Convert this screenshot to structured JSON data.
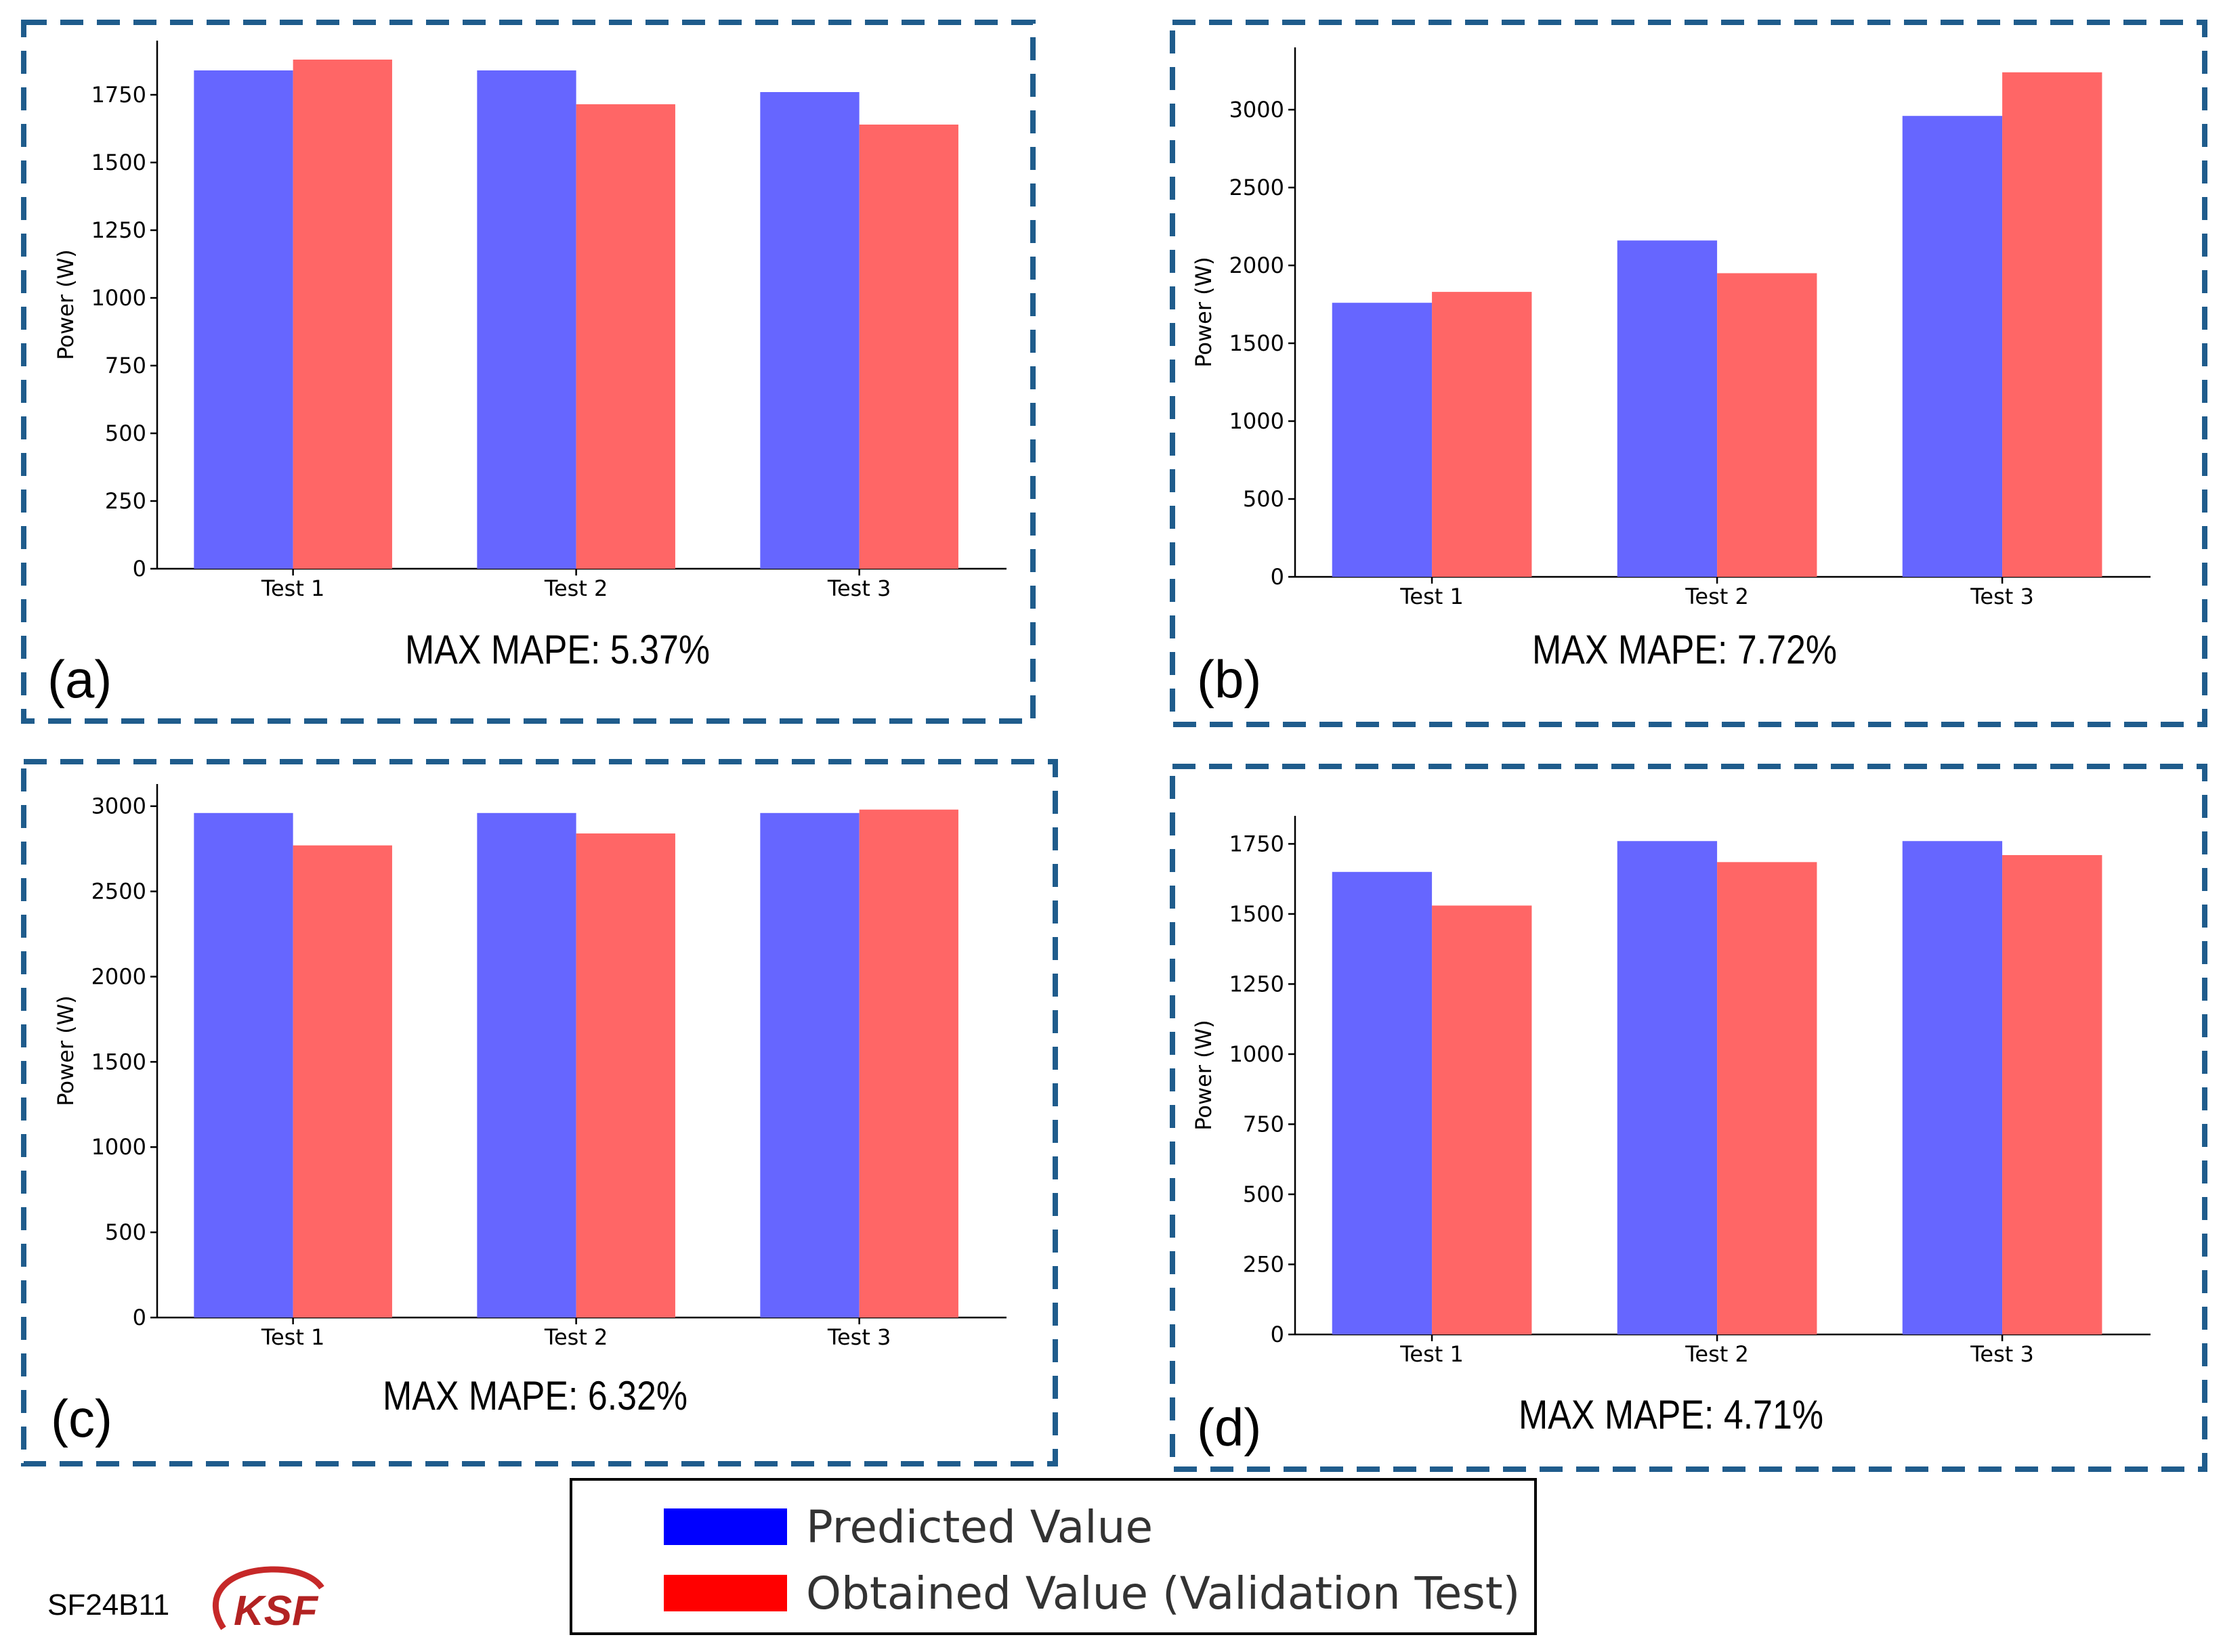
{
  "chart_data": [
    {
      "panel": "(a)",
      "type": "bar",
      "categories": [
        "Test 1",
        "Test 2",
        "Test 3"
      ],
      "ylabel": "Power (W)",
      "ylim": [
        0,
        1950
      ],
      "yticks": [
        0,
        250,
        500,
        750,
        1000,
        1250,
        1500,
        1750
      ],
      "series": [
        {
          "name": "Predicted Value",
          "color": "#6666ff",
          "values": [
            1840,
            1840,
            1760
          ]
        },
        {
          "name": "Obtained Value (Validation Test)",
          "color": "#ff6666",
          "values": [
            1880,
            1715,
            1640
          ]
        }
      ],
      "annotation": "MAX MAPE: 5.37%"
    },
    {
      "panel": "(b)",
      "type": "bar",
      "categories": [
        "Test 1",
        "Test 2",
        "Test 3"
      ],
      "ylabel": "Power (W)",
      "ylim": [
        0,
        3400
      ],
      "yticks": [
        0,
        500,
        1000,
        1500,
        2000,
        2500,
        3000
      ],
      "series": [
        {
          "name": "Predicted Value",
          "color": "#6666ff",
          "values": [
            1760,
            2160,
            2960
          ]
        },
        {
          "name": "Obtained Value (Validation Test)",
          "color": "#ff6666",
          "values": [
            1830,
            1950,
            3240
          ]
        }
      ],
      "annotation": "MAX MAPE: 7.72%"
    },
    {
      "panel": "(c)",
      "type": "bar",
      "categories": [
        "Test 1",
        "Test 2",
        "Test 3"
      ],
      "ylabel": "Power (W)",
      "ylim": [
        0,
        3130
      ],
      "yticks": [
        0,
        500,
        1000,
        1500,
        2000,
        2500,
        3000
      ],
      "series": [
        {
          "name": "Predicted Value",
          "color": "#6666ff",
          "values": [
            2960,
            2960,
            2960
          ]
        },
        {
          "name": "Obtained Value (Validation Test)",
          "color": "#ff6666",
          "values": [
            2770,
            2840,
            2980
          ]
        }
      ],
      "annotation": "MAX MAPE: 6.32%"
    },
    {
      "panel": "(d)",
      "type": "bar",
      "categories": [
        "Test 1",
        "Test 2",
        "Test 3"
      ],
      "ylabel": "Power (W)",
      "ylim": [
        0,
        1850
      ],
      "yticks": [
        0,
        250,
        500,
        750,
        1000,
        1250,
        1500,
        1750
      ],
      "series": [
        {
          "name": "Predicted Value",
          "color": "#6666ff",
          "values": [
            1650,
            1760,
            1760
          ]
        },
        {
          "name": "Obtained Value (Validation Test)",
          "color": "#ff6666",
          "values": [
            1530,
            1685,
            1710
          ]
        }
      ],
      "annotation": "MAX MAPE: 4.71%"
    }
  ],
  "legend": {
    "entries": [
      {
        "label": "Predicted Value",
        "color": "#0000ff"
      },
      {
        "label": "Obtained Value (Validation Test)",
        "color": "#ff0000"
      }
    ]
  },
  "footer": {
    "code": "SF24B11",
    "logo": "KSF"
  },
  "colors": {
    "frame": "#1f5c8c"
  }
}
